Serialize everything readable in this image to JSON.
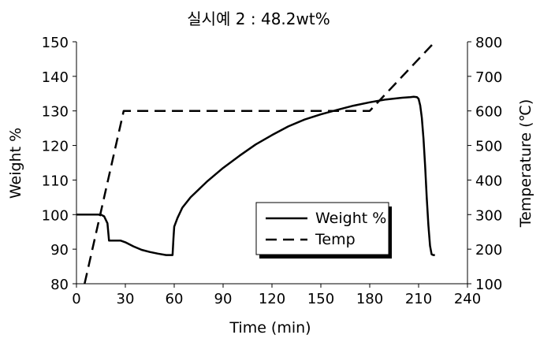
{
  "chart_data": {
    "type": "line",
    "title": "실시예 2 : 48.2wt%",
    "xlabel": "Time (min)",
    "ylabel": "Weight %",
    "y2label": "Temperature (℃)",
    "xlim": [
      0,
      240
    ],
    "ylim": [
      80,
      150
    ],
    "y2lim": [
      100,
      800
    ],
    "x_ticks": [
      "0",
      "30",
      "60",
      "90",
      "120",
      "150",
      "180",
      "210",
      "240"
    ],
    "y_ticks": [
      "80",
      "90",
      "100",
      "110",
      "120",
      "130",
      "140",
      "150"
    ],
    "y2_ticks": [
      "100",
      "200",
      "300",
      "400",
      "500",
      "600",
      "700",
      "800"
    ],
    "grid": false,
    "legend_position": "lower-right inside plot",
    "series": [
      {
        "name": "Weight %",
        "axis": "left",
        "style": "solid",
        "x": [
          0,
          10,
          15,
          17,
          19,
          20,
          22,
          27,
          30,
          35,
          40,
          45,
          50,
          55,
          58,
          59,
          59.5,
          60,
          62,
          65,
          70,
          80,
          90,
          100,
          110,
          120,
          130,
          140,
          150,
          160,
          170,
          180,
          190,
          200,
          205,
          207,
          209,
          210,
          211,
          212,
          213,
          214,
          215,
          216,
          217,
          218,
          219,
          220
        ],
        "y": [
          100,
          100,
          100,
          99.5,
          97.5,
          92.5,
          92.5,
          92.5,
          92,
          90.8,
          89.8,
          89.2,
          88.7,
          88.3,
          88.3,
          88.3,
          93,
          96.5,
          99,
          102,
          105,
          109.5,
          113.5,
          117,
          120.3,
          123,
          125.5,
          127.5,
          129,
          130.3,
          131.5,
          132.5,
          133.3,
          133.8,
          134,
          134.1,
          134,
          133.5,
          131.5,
          128,
          122,
          114,
          105,
          97,
          91,
          88.5,
          88.3,
          88.3
        ]
      },
      {
        "name": "Temp",
        "axis": "right",
        "style": "dashed",
        "x": [
          5,
          29,
          180,
          220
        ],
        "y": [
          100,
          600,
          600,
          800
        ]
      }
    ]
  },
  "colors": {
    "line": "#000000",
    "background": "#ffffff"
  }
}
